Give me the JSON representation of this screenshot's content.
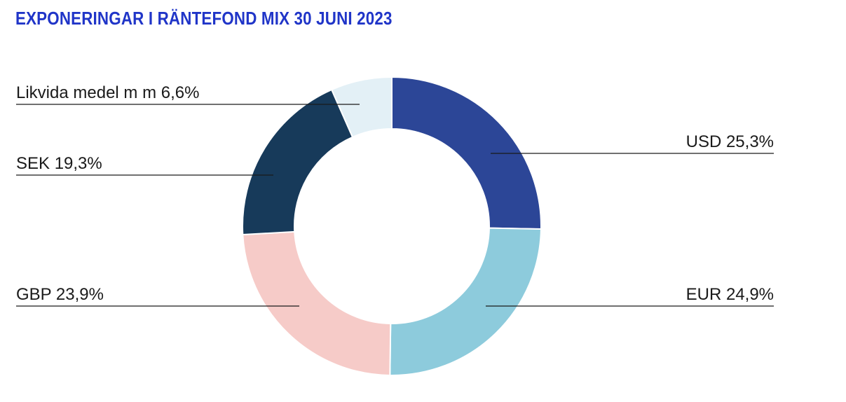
{
  "chart_data": {
    "type": "donut",
    "title": "EXPONERINGAR I RÄNTEFOND MIX 30 JUNI 2023",
    "title_color": "#2035c8",
    "slices": [
      {
        "label": "USD 25,3%",
        "value": 25.3,
        "color": "#2c4697"
      },
      {
        "label": "EUR 24,9%",
        "value": 24.9,
        "color": "#8dcbdc"
      },
      {
        "label": "GBP 23,9%",
        "value": 23.9,
        "color": "#f6cbc8"
      },
      {
        "label": "SEK 19,3%",
        "value": 19.3,
        "color": "#173a5a"
      },
      {
        "label": "Likvida medel m m 6,6%",
        "value": 6.6,
        "color": "#e3f0f6"
      }
    ],
    "legend": "callout-lines"
  }
}
